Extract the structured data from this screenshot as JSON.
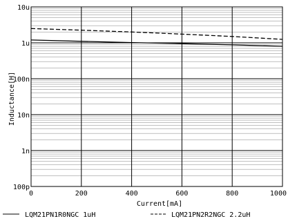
{
  "chart_data": {
    "type": "line",
    "title": "",
    "xlabel": "Current[mA]",
    "ylabel": "Inductance[H]",
    "xlim": [
      0,
      1000
    ],
    "ylim": [
      1e-10,
      1e-05
    ],
    "yscale": "log",
    "grid": true,
    "legend_position": "bottom",
    "x_ticks": [
      {
        "value": 0,
        "label": "0"
      },
      {
        "value": 200,
        "label": "200"
      },
      {
        "value": 400,
        "label": "400"
      },
      {
        "value": 600,
        "label": "600"
      },
      {
        "value": 800,
        "label": "800"
      },
      {
        "value": 1000,
        "label": "1000"
      }
    ],
    "y_ticks": [
      {
        "value": 1e-10,
        "label": "100p"
      },
      {
        "value": 1e-09,
        "label": "1n"
      },
      {
        "value": 1e-08,
        "label": "10n"
      },
      {
        "value": 1e-07,
        "label": "100n"
      },
      {
        "value": 1e-06,
        "label": "1u"
      },
      {
        "value": 1e-05,
        "label": "10u"
      }
    ],
    "series": [
      {
        "name": "LQM21PN1R0NGC 1uH",
        "style": "solid",
        "color": "#000000",
        "x": [
          0,
          200,
          400,
          600,
          800,
          1000
        ],
        "y": [
          1.2e-06,
          1.1e-06,
          1.02e-06,
          9.5e-07,
          8.8e-07,
          8e-07
        ]
      },
      {
        "name": "LQM21PN2R2NGC 2.2uH",
        "style": "dashed",
        "color": "#000000",
        "x": [
          0,
          200,
          400,
          600,
          800,
          1000
        ],
        "y": [
          2.5e-06,
          2.25e-06,
          2e-06,
          1.75e-06,
          1.5e-06,
          1.25e-06
        ]
      }
    ]
  }
}
